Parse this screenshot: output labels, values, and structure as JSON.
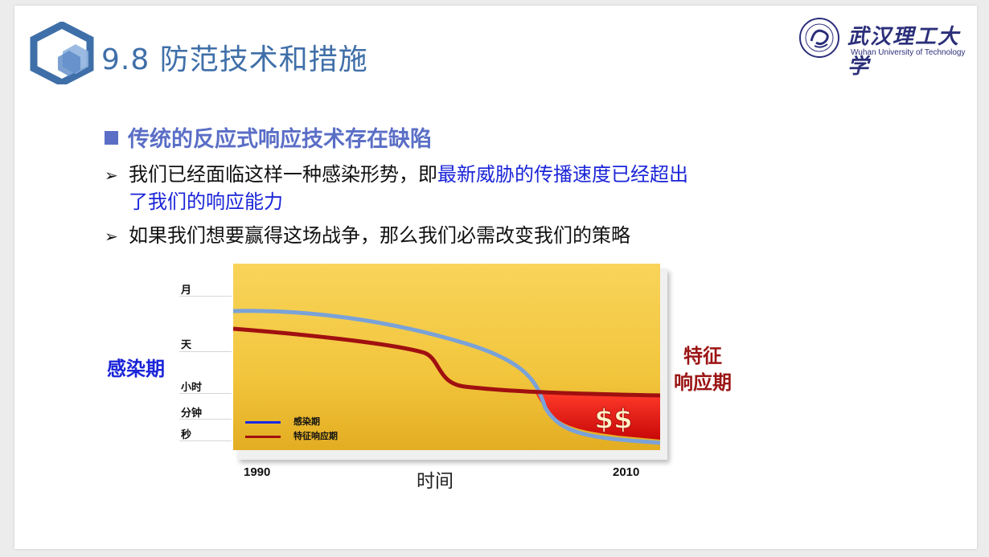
{
  "header": {
    "title": "9.8 防范技术和措施",
    "university_cn": "武汉理工大学",
    "university_en": "Wuhan University of Technology"
  },
  "content": {
    "heading": "传统的反应式响应技术存在缺陷",
    "bullets": [
      {
        "plain": "我们已经面临这样一种感染形势，即",
        "highlight_line1": "最新威胁的传播速度已经超出",
        "highlight_line2": "了我们的响应能力"
      },
      {
        "plain": "如果我们想要赢得这场战争，那么我们必需改变我们的策略"
      }
    ]
  },
  "colors": {
    "title": "#3f6fa8",
    "heading": "#5a6ec6",
    "highlight": "#1a24d8",
    "infection_series": "#1a2be0",
    "response_series": "#a01010",
    "chart_background": "#f2c53c",
    "danger_zone": "#e01010"
  },
  "chart_data": {
    "type": "line",
    "title": "",
    "xlabel": "时间",
    "ylabel_left": "感染期",
    "ylabel_right": [
      "特征",
      "响应期"
    ],
    "x_ticks": [
      "1990",
      "2010"
    ],
    "y_ticks": [
      "月",
      "天",
      "小时",
      "分钟",
      "秒"
    ],
    "series": [
      {
        "name": "感染期",
        "color": "#1a2be0"
      },
      {
        "name": "特征响应期",
        "color": "#a01010"
      }
    ],
    "annotation": "$$",
    "legend": "bottom-left"
  }
}
